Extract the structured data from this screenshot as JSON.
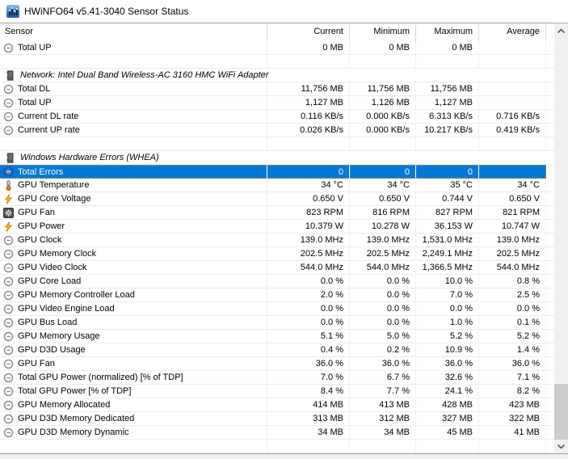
{
  "window": {
    "title": "HWiNFO64 v5.41-3040 Sensor Status",
    "app_icon": "hwinfo-graph-icon"
  },
  "colors": {
    "selection_background": "#0078d7",
    "selection_text": "#ffffff",
    "selection_ants": "#d98f2b",
    "grid_line": "#ececec",
    "scrollbar_track": "#f0f0f0",
    "scrollbar_thumb": "#cdcdcd"
  },
  "table": {
    "columns": [
      "Sensor",
      "Current",
      "Minimum",
      "Maximum",
      "Average"
    ],
    "rows": [
      {
        "type": "item",
        "icon": "gauge-icon",
        "label": "Total UP",
        "values": [
          "0 MB",
          "0 MB",
          "0 MB",
          ""
        ]
      },
      {
        "type": "blank",
        "icon": "",
        "label": "",
        "values": [
          "",
          "",
          "",
          ""
        ]
      },
      {
        "type": "section",
        "icon": "chip-icon",
        "label": "Network: Intel Dual Band Wireless-AC 3160 HMC WiFi Adapter",
        "values": [
          "",
          "",
          "",
          ""
        ]
      },
      {
        "type": "item",
        "icon": "gauge-icon",
        "label": "Total DL",
        "values": [
          "11,756 MB",
          "11,756 MB",
          "11,756 MB",
          ""
        ]
      },
      {
        "type": "item",
        "icon": "gauge-icon",
        "label": "Total UP",
        "values": [
          "1,127 MB",
          "1,126 MB",
          "1,127 MB",
          ""
        ]
      },
      {
        "type": "item",
        "icon": "gauge-icon",
        "label": "Current DL rate",
        "values": [
          "0.116 KB/s",
          "0.000 KB/s",
          "6.313 KB/s",
          "0.716 KB/s"
        ]
      },
      {
        "type": "item",
        "icon": "gauge-icon",
        "label": "Current UP rate",
        "values": [
          "0.026 KB/s",
          "0.000 KB/s",
          "10.217 KB/s",
          "0.419 KB/s"
        ]
      },
      {
        "type": "blank",
        "icon": "",
        "label": "",
        "values": [
          "",
          "",
          "",
          ""
        ]
      },
      {
        "type": "section",
        "icon": "chip-icon",
        "label": "Windows Hardware Errors (WHEA)",
        "values": [
          "",
          "",
          "",
          ""
        ]
      },
      {
        "type": "item",
        "icon": "gauge-blue-icon",
        "label": "Total Errors",
        "selected": true,
        "values": [
          "0",
          "0",
          "0",
          ""
        ]
      },
      {
        "type": "item",
        "icon": "thermometer-icon",
        "label": "GPU Temperature",
        "values": [
          "34 °C",
          "34 °C",
          "35 °C",
          "34 °C"
        ]
      },
      {
        "type": "item",
        "icon": "lightning-icon",
        "label": "GPU Core Voltage",
        "values": [
          "0.650 V",
          "0.650 V",
          "0.744 V",
          "0.650 V"
        ]
      },
      {
        "type": "item",
        "icon": "fan-icon",
        "label": "GPU Fan",
        "values": [
          "823 RPM",
          "816 RPM",
          "827 RPM",
          "821 RPM"
        ]
      },
      {
        "type": "item",
        "icon": "lightning-icon",
        "label": "GPU Power",
        "values": [
          "10.379 W",
          "10.278 W",
          "36.153 W",
          "10.747 W"
        ]
      },
      {
        "type": "item",
        "icon": "gauge-icon",
        "label": "GPU Clock",
        "values": [
          "139.0 MHz",
          "139.0 MHz",
          "1,531.0 MHz",
          "139.0 MHz"
        ]
      },
      {
        "type": "item",
        "icon": "gauge-icon",
        "label": "GPU Memory Clock",
        "values": [
          "202.5 MHz",
          "202.5 MHz",
          "2,249.1 MHz",
          "202.5 MHz"
        ]
      },
      {
        "type": "item",
        "icon": "gauge-icon",
        "label": "GPU Video Clock",
        "values": [
          "544.0 MHz",
          "544.0 MHz",
          "1,366.5 MHz",
          "544.0 MHz"
        ]
      },
      {
        "type": "item",
        "icon": "gauge-icon",
        "label": "GPU Core Load",
        "values": [
          "0.0 %",
          "0.0 %",
          "10.0 %",
          "0.8 %"
        ]
      },
      {
        "type": "item",
        "icon": "gauge-icon",
        "label": "GPU Memory Controller Load",
        "values": [
          "2.0 %",
          "0.0 %",
          "7.0 %",
          "2.5 %"
        ]
      },
      {
        "type": "item",
        "icon": "gauge-icon",
        "label": "GPU Video Engine Load",
        "values": [
          "0.0 %",
          "0.0 %",
          "0.0 %",
          "0.0 %"
        ]
      },
      {
        "type": "item",
        "icon": "gauge-icon",
        "label": "GPU Bus Load",
        "values": [
          "0.0 %",
          "0.0 %",
          "1.0 %",
          "0.1 %"
        ]
      },
      {
        "type": "item",
        "icon": "gauge-icon",
        "label": "GPU Memory Usage",
        "values": [
          "5.1 %",
          "5.0 %",
          "5.2 %",
          "5.2 %"
        ]
      },
      {
        "type": "item",
        "icon": "gauge-icon",
        "label": "GPU D3D Usage",
        "values": [
          "0.4 %",
          "0.2 %",
          "10.9 %",
          "1.4 %"
        ]
      },
      {
        "type": "item",
        "icon": "gauge-icon",
        "label": "GPU Fan",
        "values": [
          "36.0 %",
          "36.0 %",
          "36.0 %",
          "36.0 %"
        ]
      },
      {
        "type": "item",
        "icon": "gauge-icon",
        "label": "Total GPU Power (normalized) [% of TDP]",
        "values": [
          "7.0 %",
          "6.7 %",
          "32.6 %",
          "7.1 %"
        ]
      },
      {
        "type": "item",
        "icon": "gauge-icon",
        "label": "Total GPU Power [% of TDP]",
        "values": [
          "8.4 %",
          "7.7 %",
          "24.1 %",
          "8.2 %"
        ]
      },
      {
        "type": "item",
        "icon": "gauge-icon",
        "label": "GPU Memory Allocated",
        "values": [
          "414 MB",
          "413 MB",
          "428 MB",
          "423 MB"
        ]
      },
      {
        "type": "item",
        "icon": "gauge-icon",
        "label": "GPU D3D Memory Dedicated",
        "values": [
          "313 MB",
          "312 MB",
          "327 MB",
          "322 MB"
        ]
      },
      {
        "type": "item",
        "icon": "gauge-icon",
        "label": "GPU D3D Memory Dynamic",
        "values": [
          "34 MB",
          "34 MB",
          "45 MB",
          "41 MB"
        ]
      },
      {
        "type": "blank",
        "icon": "",
        "label": "",
        "values": [
          "",
          "",
          "",
          ""
        ]
      }
    ]
  },
  "scrollbar": {
    "up_arrow": "chevron-up",
    "down_arrow": "chevron-down",
    "thumb_position": "lower"
  }
}
